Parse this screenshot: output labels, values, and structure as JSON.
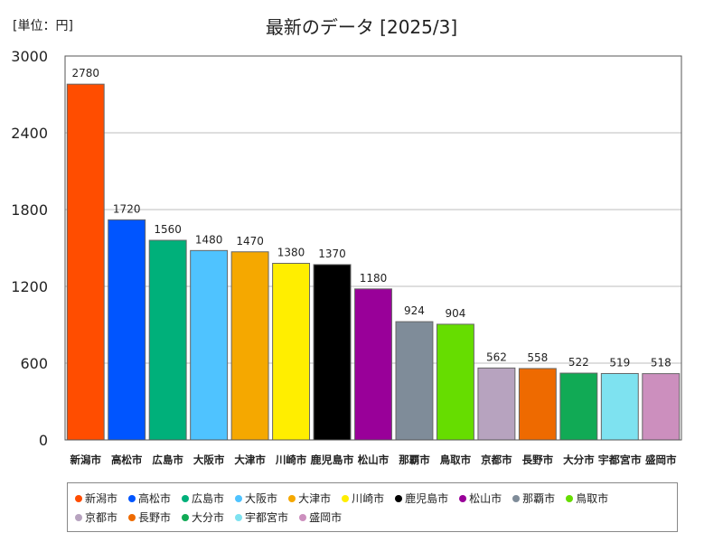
{
  "header": {
    "unit_label": "[単位：円]",
    "title": "最新のデータ [2025/3]"
  },
  "chart_data": {
    "type": "bar",
    "title": "最新のデータ [2025/3]",
    "unit": "[単位：円]",
    "ylim": [
      0,
      3000
    ],
    "yticks": [
      "0",
      "600",
      "1200",
      "1800",
      "2400",
      "3000"
    ],
    "grid": true,
    "legend_position": "bottom",
    "categories": [
      "新潟市",
      "高松市",
      "広島市",
      "大阪市",
      "大津市",
      "川崎市",
      "鹿児島市",
      "松山市",
      "那覇市",
      "鳥取市",
      "京都市",
      "長野市",
      "大分市",
      "宇都宮市",
      "盛岡市"
    ],
    "values": [
      2780,
      1720,
      1560,
      1480,
      1470,
      1380,
      1370,
      1180,
      924,
      904,
      562,
      558,
      522,
      519,
      518
    ],
    "value_labels": [
      "2780",
      "1720",
      "1560",
      "1480",
      "1470",
      "1380",
      "1370",
      "1180",
      "924",
      "904",
      "562",
      "558",
      "522",
      "519",
      "518"
    ],
    "colors": [
      "#ff4d00",
      "#0055ff",
      "#00b07a",
      "#4fc3ff",
      "#f5a800",
      "#ffee00",
      "#000000",
      "#990099",
      "#7f8c99",
      "#66dd00",
      "#b7a3bf",
      "#ee6a00",
      "#11aa55",
      "#7ee2f0",
      "#cc8fbe"
    ]
  }
}
